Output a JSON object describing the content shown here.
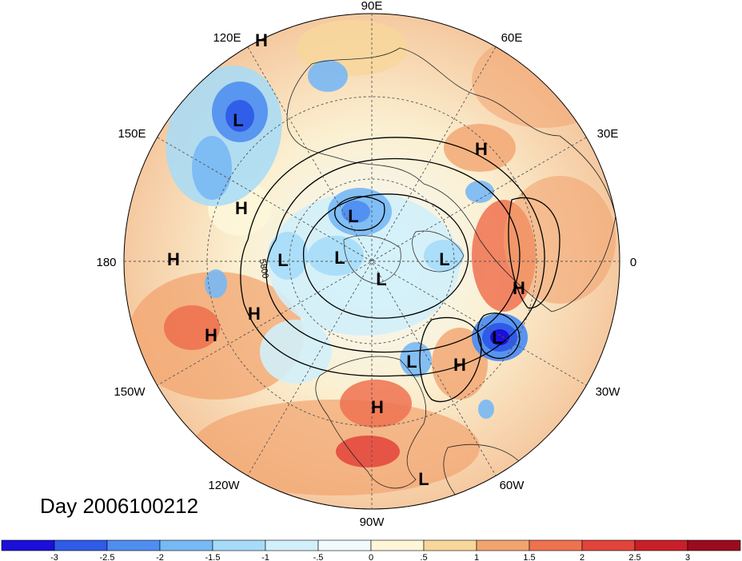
{
  "title": "Day 2006100212",
  "contour_label": "5800",
  "longitude_labels": [
    "90E",
    "60E",
    "30E",
    "0",
    "30W",
    "60W",
    "90W",
    "120W",
    "150W",
    "180",
    "150E",
    "120E"
  ],
  "pressure_centers": [
    {
      "t": "H",
      "lon": "120E"
    },
    {
      "t": "L"
    },
    {
      "t": "H"
    },
    {
      "t": "H"
    },
    {
      "t": "L"
    },
    {
      "t": "L"
    },
    {
      "t": "L"
    },
    {
      "t": "L"
    },
    {
      "t": "L"
    },
    {
      "t": "H"
    },
    {
      "t": "H"
    },
    {
      "t": "H"
    },
    {
      "t": "L"
    },
    {
      "t": "H"
    },
    {
      "t": "L"
    },
    {
      "t": "H"
    },
    {
      "t": "H"
    },
    {
      "t": "L"
    }
  ],
  "colorbar": {
    "ticks": [
      "-3",
      "-2.5",
      "-2",
      "-1.5",
      "-1",
      "-.5",
      "0",
      ".5",
      "1",
      "1.5",
      "2",
      "2.5",
      "3"
    ],
    "colors": [
      "#1b0fd8",
      "#2f5be8",
      "#4f8ef0",
      "#78b8f4",
      "#a6dcf8",
      "#d2f0fa",
      "#f1fbfd",
      "#fdf6d8",
      "#f7d79a",
      "#f2a46f",
      "#ee7250",
      "#e2433a",
      "#c81f2a",
      "#9a0b1e"
    ]
  }
}
